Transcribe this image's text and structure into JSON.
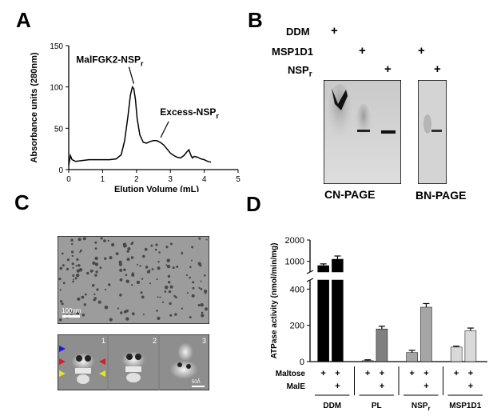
{
  "figure": {
    "panels": {
      "A": "A",
      "B": "B",
      "C": "C",
      "D": "D"
    }
  },
  "panel_a": {
    "chart_data": {
      "type": "line",
      "xlabel": "Elution  Volume (mL)",
      "ylabel": "Absorbance units (280nm)",
      "x_ticks": [
        "0",
        "1",
        "2",
        "3",
        "4",
        "5"
      ],
      "y_ticks": [
        "0",
        "50",
        "100",
        "150"
      ],
      "xlim": [
        0,
        5
      ],
      "ylim": [
        0,
        150
      ],
      "annotations": [
        {
          "base": "MalFGK2-NSP",
          "sub": "r",
          "x": 1.92,
          "y": 100
        },
        {
          "base": "Excess-NSP",
          "sub": "r",
          "x": 2.62,
          "y": 35
        }
      ],
      "series": [
        {
          "x": [
            0.0,
            0.05,
            0.1,
            0.2,
            0.4,
            0.6,
            0.8,
            1.0,
            1.2,
            1.4,
            1.55,
            1.65,
            1.75,
            1.82,
            1.88,
            1.92,
            1.97,
            2.02,
            2.1,
            2.2,
            2.3,
            2.4,
            2.5,
            2.6,
            2.7,
            2.8,
            2.9,
            3.0,
            3.1,
            3.2,
            3.3,
            3.4,
            3.5,
            3.55,
            3.6,
            3.65,
            3.7,
            3.8,
            3.9,
            4.0,
            4.1,
            4.2
          ],
          "y": [
            5,
            17,
            12,
            10,
            11,
            12,
            12,
            12,
            12,
            13,
            18,
            35,
            65,
            90,
            100,
            98,
            85,
            62,
            42,
            33,
            32,
            34,
            35,
            35,
            33,
            30,
            25,
            20,
            17,
            15,
            14,
            17,
            22,
            24,
            18,
            14,
            16,
            15,
            13,
            12,
            10,
            9
          ]
        }
      ]
    }
  },
  "panel_b": {
    "rows": [
      {
        "label": "DDM",
        "sub": ""
      },
      {
        "label": "MSP1D1",
        "sub": ""
      },
      {
        "label": "NSP",
        "sub": "r"
      }
    ],
    "plus": "+",
    "gel_labels": [
      "CN-PAGE",
      "BN-PAGE"
    ]
  },
  "panel_c": {
    "scale_bar_top": "100nm",
    "class_numbers": [
      "1",
      "2",
      "3"
    ],
    "scale_bar_bottom": "50Å",
    "arrow_colors": [
      "#1a1adb",
      "#e01b1b",
      "#e6e61a"
    ]
  },
  "panel_d": {
    "chart_data": {
      "type": "bar",
      "ylabel": "ATPase activity (nmol/min/mg)",
      "y_ticks_upper": [
        "1000",
        "2000"
      ],
      "y_ticks_lower": [
        "0",
        "200",
        "400"
      ],
      "groups": [
        {
          "name": "DDM",
          "sub": "",
          "maltose": [
            "+",
            "+"
          ],
          "male": [
            "",
            "+"
          ],
          "values": [
            800,
            1100
          ],
          "errors": [
            80,
            150
          ],
          "color": "#000000"
        },
        {
          "name": "PL",
          "sub": "",
          "maltose": [
            "+",
            "+"
          ],
          "male": [
            "",
            "+"
          ],
          "values": [
            5,
            180
          ],
          "errors": [
            5,
            15
          ],
          "color": "#808080"
        },
        {
          "name": "NSP",
          "sub": "r",
          "maltose": [
            "+",
            "+"
          ],
          "male": [
            "",
            "+"
          ],
          "values": [
            50,
            300
          ],
          "errors": [
            12,
            20
          ],
          "color": "#a6a6a6"
        },
        {
          "name": "MSP1D1",
          "sub": "",
          "maltose": [
            "+",
            "+"
          ],
          "male": [
            "",
            "+"
          ],
          "values": [
            80,
            170
          ],
          "errors": [
            5,
            15
          ],
          "color": "#d9d9d9"
        }
      ],
      "row_labels": [
        "Maltose",
        "MalE"
      ]
    }
  }
}
